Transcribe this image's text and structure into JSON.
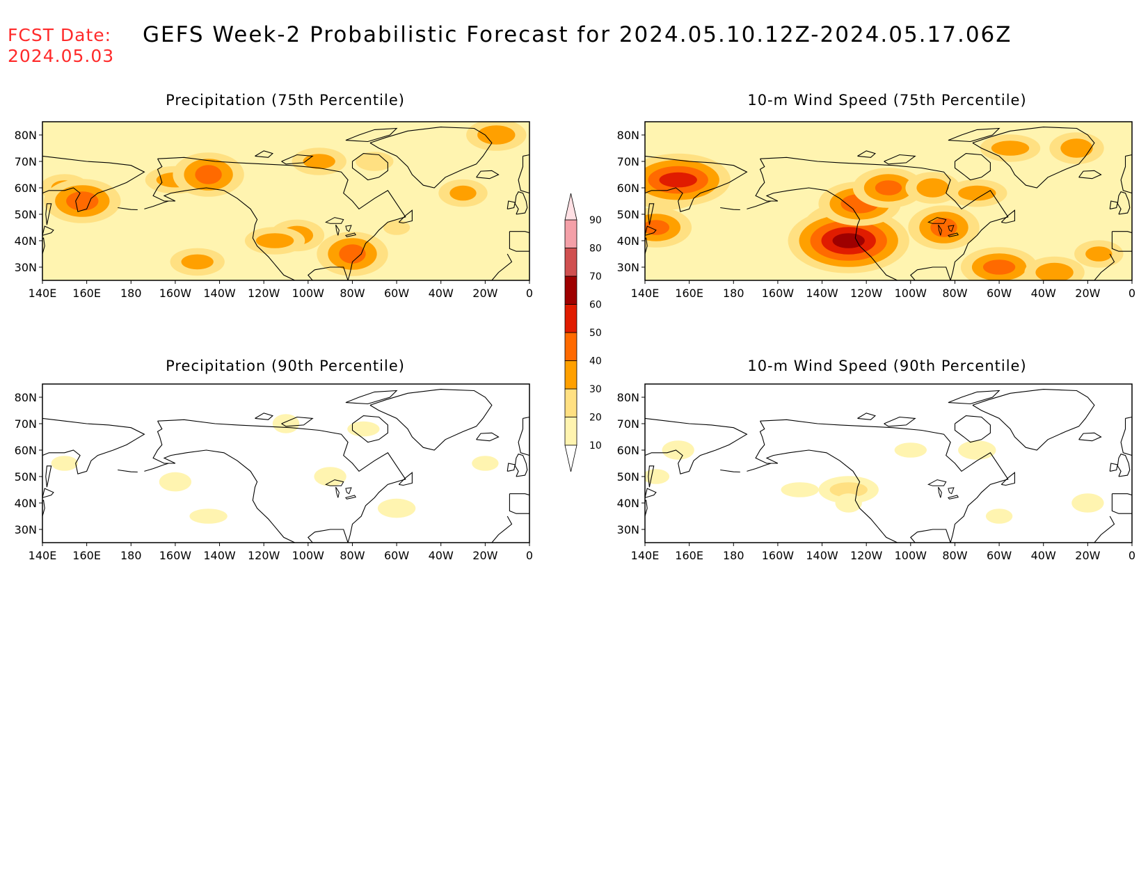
{
  "header": {
    "fcst_label": "FCST Date:",
    "fcst_date": "2024.05.03",
    "title": "GEFS Week-2 Probabilistic Forecast for 2024.05.10.12Z-2024.05.17.06Z"
  },
  "colors": {
    "date_text": "#ff2a2a",
    "ocean": "#ffffff",
    "coast": "#000000"
  },
  "lon_ticks": [
    "140E",
    "160E",
    "180",
    "160W",
    "140W",
    "120W",
    "100W",
    "80W",
    "60W",
    "40W",
    "20W",
    "0"
  ],
  "lat_ticks": [
    "80N",
    "70N",
    "60N",
    "50N",
    "40N",
    "30N"
  ],
  "extent": {
    "lon_min": 140,
    "lon_max": 360,
    "lat_min": 25,
    "lat_max": 85
  },
  "colorbar": {
    "levels": [
      "10",
      "20",
      "30",
      "40",
      "50",
      "60",
      "70",
      "80",
      "90"
    ],
    "colors": [
      "#ffffff",
      "#fff4b0",
      "#ffe082",
      "#ffa000",
      "#ff6a00",
      "#e01c00",
      "#9e0000",
      "#d05050",
      "#f4a0a8",
      "#ffe0e4"
    ]
  },
  "panels": [
    {
      "id": "precip-75",
      "title": "Precipitation (75th Percentile)",
      "base_level": 1,
      "hotspots": [
        [
          150,
          60,
          2
        ],
        [
          158,
          55,
          3
        ],
        [
          200,
          63,
          2
        ],
        [
          215,
          65,
          3
        ],
        [
          265,
          70,
          2
        ],
        [
          290,
          70,
          1
        ],
        [
          330,
          58,
          2
        ],
        [
          255,
          42,
          2
        ],
        [
          245,
          40,
          2
        ],
        [
          280,
          35,
          3
        ],
        [
          210,
          32,
          2
        ],
        [
          345,
          80,
          2
        ],
        [
          300,
          45,
          1
        ]
      ]
    },
    {
      "id": "wind-75",
      "title": "10-m Wind Speed (75th Percentile)",
      "base_level": 1,
      "hotspots": [
        [
          145,
          45,
          3
        ],
        [
          150,
          60,
          3
        ],
        [
          155,
          63,
          4
        ],
        [
          232,
          44,
          4
        ],
        [
          232,
          40,
          5
        ],
        [
          237,
          54,
          3
        ],
        [
          250,
          60,
          3
        ],
        [
          270,
          60,
          2
        ],
        [
          290,
          58,
          2
        ],
        [
          275,
          45,
          3
        ],
        [
          300,
          30,
          3
        ],
        [
          325,
          28,
          2
        ],
        [
          345,
          35,
          2
        ],
        [
          335,
          75,
          2
        ],
        [
          305,
          75,
          2
        ]
      ]
    },
    {
      "id": "precip-90",
      "title": "Precipitation (90th Percentile)",
      "base_level": 0,
      "hotspots": [
        [
          150,
          55,
          1
        ],
        [
          200,
          48,
          1
        ],
        [
          215,
          35,
          1
        ],
        [
          250,
          70,
          1
        ],
        [
          285,
          68,
          1
        ],
        [
          300,
          38,
          1
        ],
        [
          340,
          55,
          1
        ],
        [
          270,
          50,
          1
        ]
      ]
    },
    {
      "id": "wind-90",
      "title": "10-m Wind Speed (90th Percentile)",
      "base_level": 0,
      "hotspots": [
        [
          145,
          50,
          1
        ],
        [
          155,
          60,
          1
        ],
        [
          232,
          45,
          2
        ],
        [
          232,
          40,
          1
        ],
        [
          260,
          60,
          1
        ],
        [
          290,
          60,
          1
        ],
        [
          300,
          35,
          1
        ],
        [
          340,
          40,
          1
        ],
        [
          210,
          45,
          1
        ]
      ]
    }
  ]
}
